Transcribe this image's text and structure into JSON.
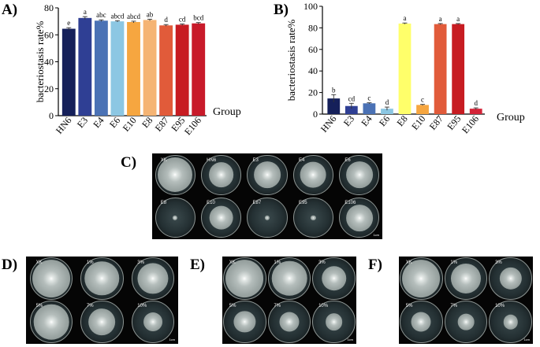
{
  "panels": {
    "A": "A)",
    "B": "B)",
    "C": "C)",
    "D": "D)",
    "E": "E)",
    "F": "F)"
  },
  "chart_data": [
    {
      "type": "bar",
      "panel": "A",
      "ylabel": "bacteriostasis rate%",
      "xlabel": "Group",
      "ylim": [
        0,
        80
      ],
      "yticks": [
        0,
        20,
        40,
        60,
        80
      ],
      "categories": [
        "HN6",
        "E3",
        "E4",
        "E6",
        "E10",
        "E8",
        "E87",
        "E95",
        "E106"
      ],
      "values": [
        64.5,
        72.5,
        70.5,
        70,
        69.5,
        71,
        67,
        67.5,
        68.5
      ],
      "errors": [
        0.8,
        1,
        0.6,
        0.5,
        0.6,
        0.6,
        0.6,
        0.6,
        0.6
      ],
      "letters": [
        "e",
        "a",
        "abc",
        "abcd",
        "abcd",
        "ab",
        "d",
        "cd",
        "bcd"
      ],
      "colors": [
        "#15205a",
        "#2f3f94",
        "#4b72b5",
        "#8cc7e3",
        "#f6a640",
        "#f5b474",
        "#e15b3a",
        "#c71c22",
        "#c81a2a"
      ]
    },
    {
      "type": "bar",
      "panel": "B",
      "ylabel": "bacteriostasis rate%",
      "xlabel": "Group",
      "ylim": [
        0,
        100
      ],
      "yticks": [
        0,
        20,
        40,
        60,
        80,
        100
      ],
      "categories": [
        "HN6",
        "E3",
        "E4",
        "E6",
        "E8",
        "E10",
        "E87",
        "E95",
        "E106"
      ],
      "values": [
        14.5,
        7.5,
        10,
        5,
        84,
        8.5,
        83.5,
        83.5,
        5
      ],
      "errors": [
        3.5,
        2.5,
        0.5,
        1.5,
        0.5,
        0.5,
        0.5,
        0.5,
        0.8
      ],
      "letters": [
        "b",
        "cd",
        "c",
        "d",
        "a",
        "c",
        "a",
        "a",
        "d"
      ],
      "colors": [
        "#15205a",
        "#2f3f94",
        "#4b72b5",
        "#8cc7e3",
        "#ffff6a",
        "#f6a640",
        "#e15b3a",
        "#c71c22",
        "#d42438"
      ]
    }
  ],
  "photoC": {
    "dishes": [
      {
        "label": "XK",
        "colony": 0.86
      },
      {
        "label": "HN6",
        "colony": 0.62
      },
      {
        "label": "E3",
        "colony": 0.66
      },
      {
        "label": "E4",
        "colony": 0.64
      },
      {
        "label": "E6",
        "colony": 0.66
      },
      {
        "label": "E8",
        "colony": 0.12
      },
      {
        "label": "E10",
        "colony": 0.6
      },
      {
        "label": "E87",
        "colony": 0.12
      },
      {
        "label": "E95",
        "colony": 0.12
      },
      {
        "label": "E106",
        "colony": 0.66
      }
    ],
    "scale": "1cm"
  },
  "photoD": {
    "labels": [
      "XK",
      "1%",
      "3%",
      "5%",
      "7%",
      "10%"
    ],
    "colony": [
      0.88,
      0.8,
      0.72,
      0.82,
      0.62,
      0.44
    ],
    "scale": "1cm"
  },
  "photoE": {
    "labels": [
      "XK",
      "1%",
      "3%",
      "5%",
      "7%",
      "10%"
    ],
    "colony": [
      0.88,
      0.82,
      0.58,
      0.5,
      0.46,
      0.4
    ],
    "scale": "1cm"
  },
  "photoF": {
    "labels": [
      "XK",
      "1%",
      "3%",
      "5%",
      "7%",
      "10%"
    ],
    "colony": [
      0.88,
      0.7,
      0.52,
      0.46,
      0.38,
      0.34
    ],
    "scale": "1cm"
  }
}
